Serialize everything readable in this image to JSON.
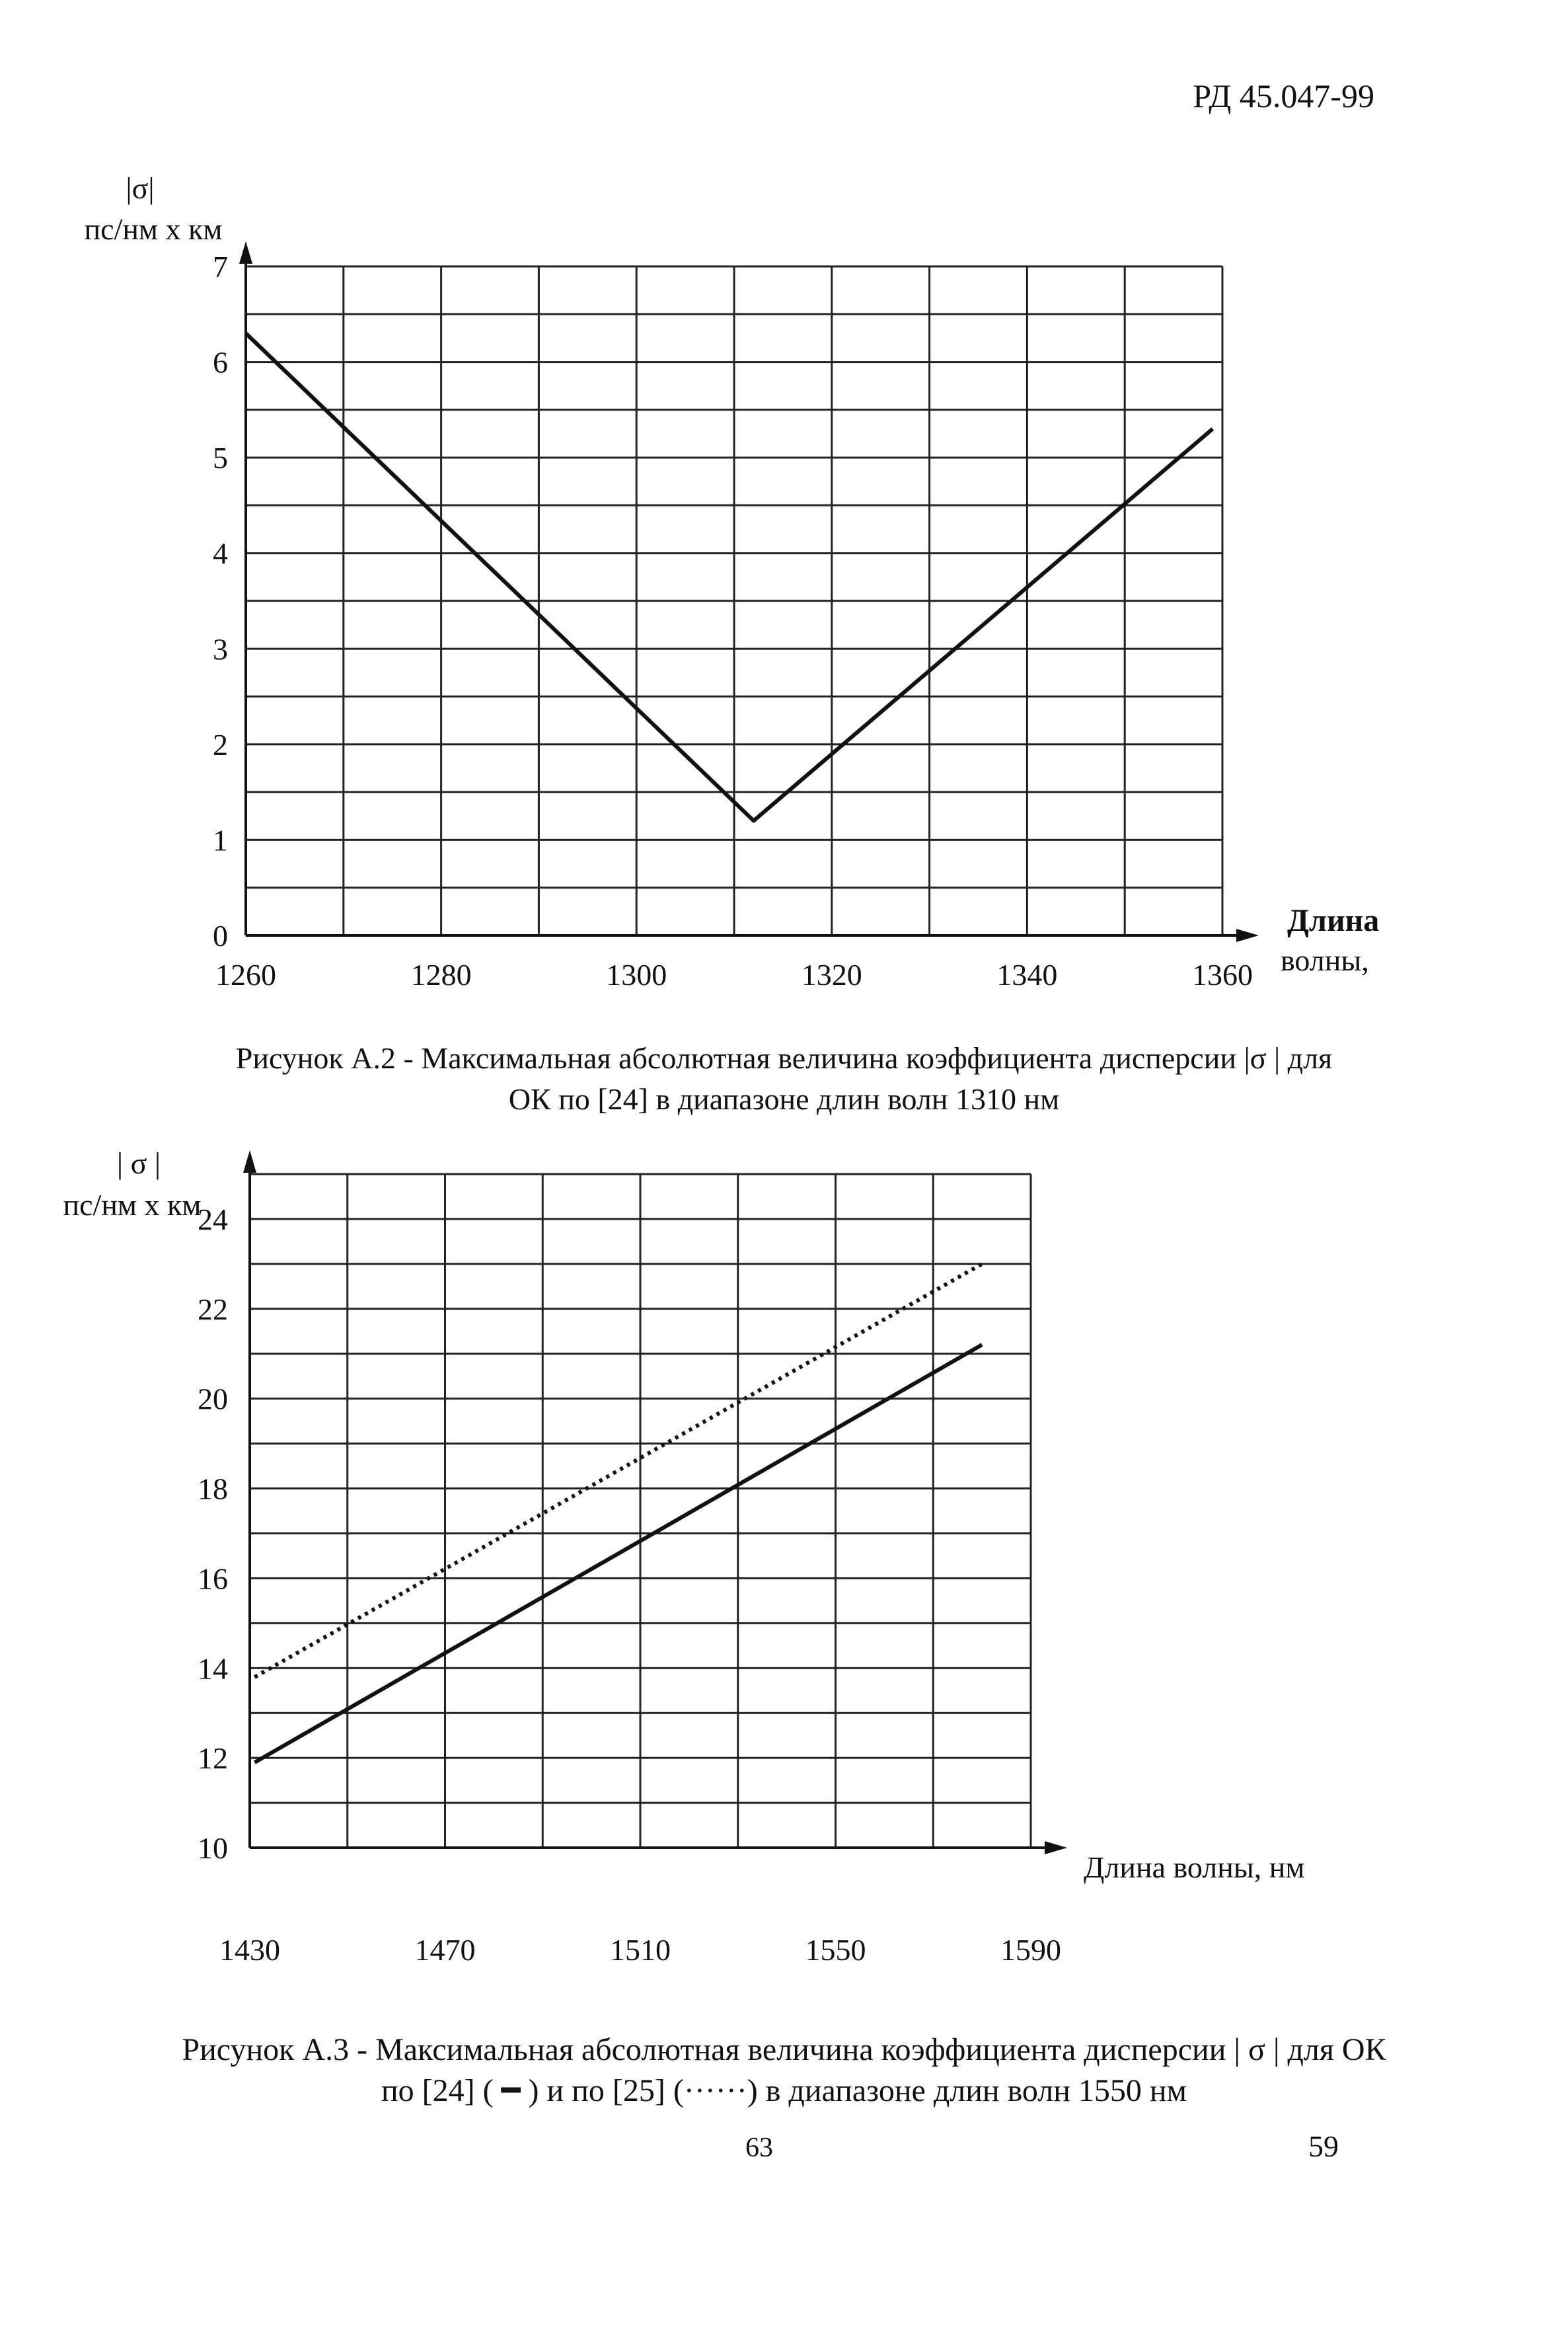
{
  "header": {
    "doc_code": "РД 45.047-99"
  },
  "chart_data": [
    {
      "type": "line",
      "title": "",
      "ylabel": "|σ| пс/нм х км",
      "ylabel_lines": [
        "|σ|",
        "пс/нм х км"
      ],
      "xlabel": "Длина волны,",
      "xlabel_lines": [
        "Длина",
        "волны,"
      ],
      "xlim": [
        1260,
        1360
      ],
      "ylim": [
        0,
        7
      ],
      "x_ticks": [
        1260,
        1280,
        1300,
        1320,
        1340,
        1360
      ],
      "y_ticks": [
        0,
        1,
        2,
        3,
        4,
        5,
        6,
        7
      ],
      "grid": true,
      "grid_x_step": 10,
      "grid_y_step": 0.5,
      "series": [
        {
          "style": "solid",
          "x": [
            1260,
            1312,
            1359
          ],
          "y": [
            6.3,
            1.2,
            5.3
          ]
        }
      ],
      "caption_lines": [
        "Рисунок А.2 - Максимальная абсолютная величина коэффициента дисперсии |σ | для",
        "ОК по [24] в диапазоне длин волн 1310 нм"
      ]
    },
    {
      "type": "line",
      "title": "",
      "ylabel": "| σ | пс/нм х км",
      "ylabel_lines": [
        "| σ |",
        "пс/нм х км"
      ],
      "xlabel": "Длина волны, нм",
      "xlim": [
        1430,
        1590
      ],
      "ylim": [
        10,
        25
      ],
      "x_ticks": [
        1430,
        1470,
        1510,
        1550,
        1590
      ],
      "y_ticks": [
        10,
        12,
        14,
        16,
        18,
        20,
        22,
        24
      ],
      "grid": true,
      "grid_x_step": 20,
      "grid_y_step": 1,
      "series": [
        {
          "style": "solid",
          "x": [
            1431,
            1580
          ],
          "y": [
            11.9,
            21.2
          ]
        },
        {
          "style": "dotted",
          "x": [
            1431,
            1580
          ],
          "y": [
            13.8,
            23.0
          ]
        }
      ],
      "caption_lines": [
        "Рисунок А.3 - Максимальная абсолютная величина коэффициента дисперсии | σ | для ОК",
        "по [24] ( ━ ) и по [25] (······) в диапазоне длин волн 1550 нм"
      ]
    }
  ],
  "footer": {
    "page_left": "63",
    "page_right": "59"
  }
}
